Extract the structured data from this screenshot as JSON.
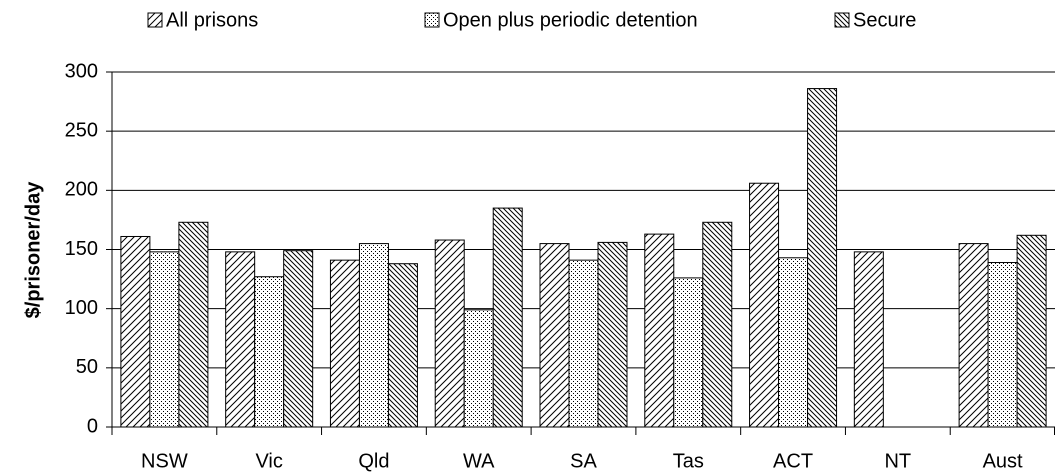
{
  "chart_data": {
    "type": "bar",
    "y_label": "$/prisoner/day",
    "categories": [
      "NSW",
      "Vic",
      "Qld",
      "WA",
      "SA",
      "Tas",
      "ACT",
      "NT",
      "Aust"
    ],
    "series": [
      {
        "name": "All prisons",
        "color": "#000000",
        "pattern": "forward-hatch",
        "values": [
          161,
          148,
          141,
          158,
          155,
          163,
          206,
          148,
          155
        ]
      },
      {
        "name": "Open plus periodic detention",
        "color": "#000000",
        "pattern": "dots",
        "values": [
          148,
          127,
          155,
          99,
          141,
          126,
          143,
          null,
          139
        ]
      },
      {
        "name": "Secure",
        "color": "#000000",
        "pattern": "back-hatch",
        "values": [
          173,
          149,
          138,
          185,
          156,
          173,
          286,
          null,
          162
        ]
      }
    ],
    "ylim": [
      0,
      300
    ],
    "yticks": [
      0,
      50,
      100,
      150,
      200,
      250,
      300
    ],
    "grid": true,
    "legend": "top"
  }
}
